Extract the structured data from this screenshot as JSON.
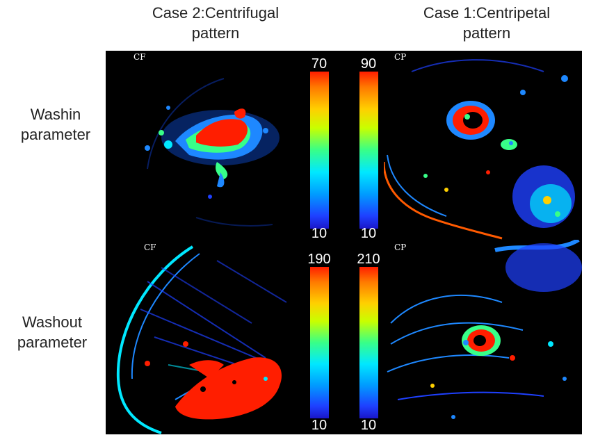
{
  "columns": {
    "left": "Case 2:Centrifugal\npattern",
    "right": "Case 1:Centripetal\npattern"
  },
  "rows": {
    "top": "Washin\nparameter",
    "bottom": "Washout\nparameter"
  },
  "panels": {
    "top_left": {
      "tag": "CF",
      "scale_max": "70",
      "scale_min": "10"
    },
    "top_right": {
      "tag": "CP",
      "scale_max": "90",
      "scale_min": "10"
    },
    "bottom_left": {
      "tag": "CF",
      "scale_max": "190",
      "scale_min": "10"
    },
    "bottom_right": {
      "tag": "CP",
      "scale_max": "210",
      "scale_min": "10"
    }
  },
  "colors": {
    "hot": "#ff1e00",
    "warm": "#ffd000",
    "mid": "#38ff88",
    "cool": "#009cff",
    "cold": "#1a16c8"
  }
}
